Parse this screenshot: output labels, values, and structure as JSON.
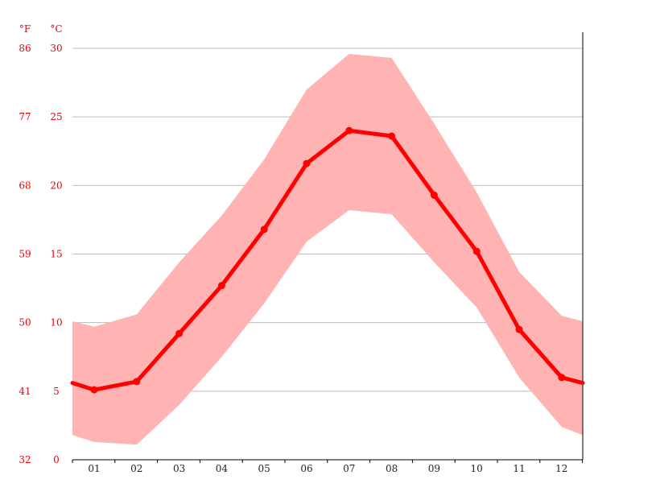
{
  "colors": {
    "line": "#ff0000",
    "band": "#ffb3b3",
    "text_red": "#e8000b",
    "grid": "#bbbbbb",
    "axis": "#000000"
  },
  "units": {
    "fahrenheit": "°F",
    "celsius": "°C"
  },
  "chart_data": {
    "type": "line",
    "x": [
      "01",
      "02",
      "03",
      "04",
      "05",
      "06",
      "07",
      "08",
      "09",
      "10",
      "11",
      "12"
    ],
    "series": [
      {
        "role": "mean",
        "values": [
          5.1,
          5.7,
          9.2,
          12.7,
          16.8,
          21.6,
          24.0,
          23.6,
          19.3,
          15.2,
          9.5,
          6.0
        ]
      },
      {
        "role": "max",
        "values": [
          9.7,
          10.6,
          14.4,
          17.8,
          21.9,
          27.0,
          29.6,
          29.3,
          24.5,
          19.5,
          13.7,
          10.5
        ]
      },
      {
        "role": "min",
        "values": [
          1.3,
          1.1,
          4.0,
          7.5,
          11.4,
          15.9,
          18.2,
          17.9,
          14.4,
          11.1,
          6.0,
          2.4
        ]
      }
    ],
    "edge_values": {
      "mean_start": 5.6,
      "mean_end": 5.6,
      "max_start": 10.1,
      "max_end": 10.1,
      "min_start": 1.8,
      "min_end": 1.8
    },
    "y_ticks_celsius": [
      "0",
      "5",
      "10",
      "15",
      "20",
      "25",
      "30"
    ],
    "y_ticks_fahrenheit": [
      "32",
      "41",
      "50",
      "59",
      "68",
      "77",
      "86"
    ],
    "ylim": [
      0,
      30
    ],
    "grid": true
  }
}
